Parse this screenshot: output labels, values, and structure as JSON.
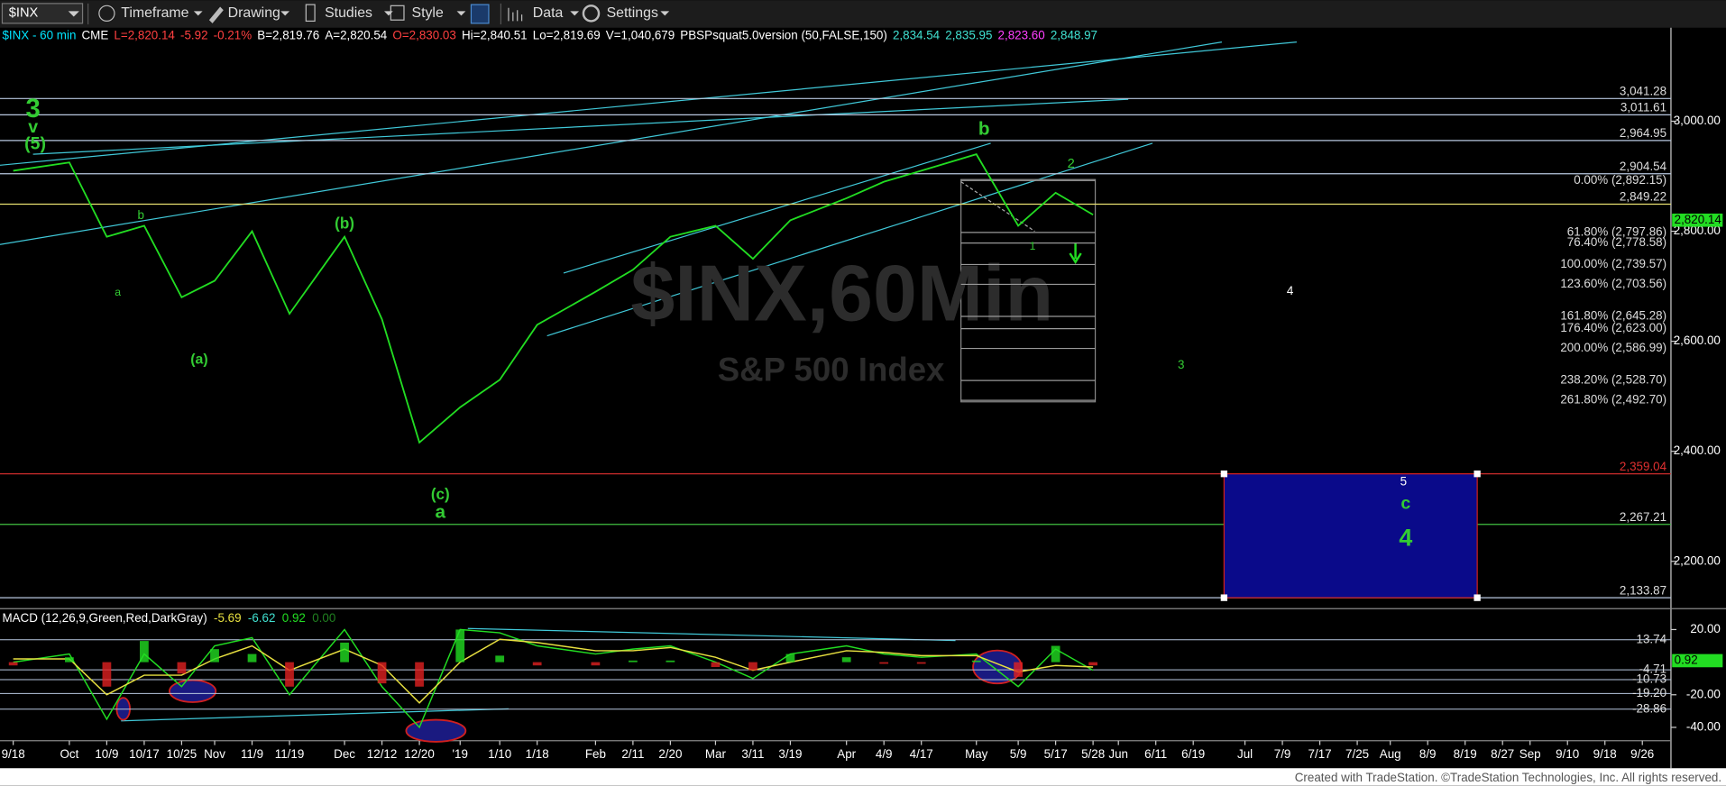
{
  "toolbar": {
    "symbol": "$INX",
    "items": [
      "Timeframe",
      "Drawing",
      "Studies",
      "Style",
      "Data",
      "Settings"
    ]
  },
  "header": {
    "fields": [
      {
        "text": "$INX - 60 min",
        "color": "#00e5ff"
      },
      {
        "text": "CME",
        "color": "#ffffff"
      },
      {
        "text": "L=2,820.14",
        "color": "#ff4040"
      },
      {
        "text": "-5.92",
        "color": "#ff4040"
      },
      {
        "text": "-0.21%",
        "color": "#ff4040"
      },
      {
        "text": "B=2,819.76",
        "color": "#ffffff"
      },
      {
        "text": "A=2,820.54",
        "color": "#ffffff"
      },
      {
        "text": "O=2,830.03",
        "color": "#ff4040"
      },
      {
        "text": "Hi=2,840.51",
        "color": "#ffffff"
      },
      {
        "text": "Lo=2,819.69",
        "color": "#ffffff"
      },
      {
        "text": "V=1,040,679",
        "color": "#ffffff"
      },
      {
        "text": "PBSPsquat5.0version (50,FALSE,150)",
        "color": "#ffffff"
      },
      {
        "text": "2,834.54",
        "color": "#40e0d0"
      },
      {
        "text": "2,835.95",
        "color": "#40e0d0"
      },
      {
        "text": "2,823.60",
        "color": "#ff40ff"
      },
      {
        "text": "2,848.97",
        "color": "#40e0d0"
      }
    ]
  },
  "watermark": {
    "line1": "$INX,60Min",
    "line2": "S&P 500 Index"
  },
  "chart_data": [
    {
      "type": "line",
      "color": "#22dd22",
      "categories": [
        "9/18",
        "Oct",
        "10/9",
        "10/17",
        "10/25",
        "Nov",
        "11/9",
        "11/19",
        "Dec",
        "12/12",
        "12/20",
        "'19",
        "1/10",
        "1/18",
        "Feb",
        "2/11",
        "2/20",
        "Mar",
        "3/11",
        "3/19",
        "Apr",
        "4/9",
        "4/17",
        "May",
        "5/9",
        "5/17",
        "5/28",
        "Jun",
        "6/11",
        "6/19",
        "Jul",
        "7/9",
        "7/17",
        "7/25",
        "Aug",
        "8/9",
        "8/19",
        "8/27",
        "Sep",
        "9/10",
        "9/18",
        "9/26"
      ],
      "values": [
        2910,
        2925,
        2790,
        2810,
        2680,
        2710,
        2800,
        2650,
        2790,
        2640,
        2416,
        2480,
        2530,
        2630,
        2690,
        2730,
        2790,
        2810,
        2750,
        2820,
        2860,
        2890,
        2910,
        2940,
        2810,
        2870,
        2830,
        null,
        null,
        null,
        null,
        null,
        null,
        null,
        null,
        null,
        null,
        null,
        null,
        null,
        null,
        null
      ],
      "ylim": [
        2114,
        3170
      ],
      "yticks": [
        {
          "value": 3000,
          "label": "3,000.00"
        },
        {
          "value": 2800,
          "label": "2,800.00"
        },
        {
          "value": 2600,
          "label": "2,600.00"
        },
        {
          "value": 2400,
          "label": "2,400.00"
        },
        {
          "value": 2200,
          "label": "2,200.00"
        }
      ],
      "last_price": {
        "value": 2820.14,
        "label": "2,820.14",
        "color": "#22dd22"
      },
      "levels": [
        {
          "value": 3041.28,
          "label": "3,041.28",
          "color": "#b8c8e0"
        },
        {
          "value": 3011.61,
          "label": "3,011.61",
          "color": "#b8c8e0"
        },
        {
          "value": 2964.95,
          "label": "2,964.95",
          "color": "#b8c8e0"
        },
        {
          "value": 2904.54,
          "label": "2,904.54",
          "color": "#b8c8e0"
        },
        {
          "value": 2849.22,
          "label": "2,849.22",
          "color": "#e8e070"
        },
        {
          "value": 2359.04,
          "label": "2,359.04",
          "color": "#e03030"
        },
        {
          "value": 2267.21,
          "label": "2,267.21",
          "color": "#40c040"
        },
        {
          "value": 2133.87,
          "label": "2,133.87",
          "color": "#b8c8e0"
        }
      ],
      "fib_levels": [
        {
          "value": 2892.15,
          "label": "0.00% (2,892.15)"
        },
        {
          "value": 2797.86,
          "label": "61.80% (2,797.86)"
        },
        {
          "value": 2778.58,
          "label": "76.40% (2,778.58)"
        },
        {
          "value": 2739.57,
          "label": "100.00% (2,739.57)"
        },
        {
          "value": 2703.56,
          "label": "123.60% (2,703.56)"
        },
        {
          "value": 2645.28,
          "label": "161.80% (2,645.28)"
        },
        {
          "value": 2623.0,
          "label": "176.40% (2,623.00)"
        },
        {
          "value": 2586.99,
          "label": "200.00% (2,586.99)"
        },
        {
          "value": 2528.7,
          "label": "238.20% (2,528.70)"
        },
        {
          "value": 2492.7,
          "label": "261.80% (2,492.70)"
        }
      ],
      "annotations": [
        {
          "text": "3",
          "color": "#33cc33"
        },
        {
          "text": "v",
          "color": "#33cc33"
        },
        {
          "text": "(5)",
          "color": "#33cc33"
        },
        {
          "text": "b",
          "color": "#33cc33"
        },
        {
          "text": "a",
          "color": "#33cc33"
        },
        {
          "text": "(a)",
          "color": "#33cc33"
        },
        {
          "text": "(b)",
          "color": "#33cc33"
        },
        {
          "text": "(c)",
          "color": "#33cc33"
        },
        {
          "text": "a",
          "color": "#33cc33"
        },
        {
          "text": "b",
          "color": "#33cc33"
        },
        {
          "text": "2",
          "color": "#33cc33"
        },
        {
          "text": "1",
          "color": "#33cc33"
        },
        {
          "text": "4",
          "color": "#ffffff"
        },
        {
          "text": "3",
          "color": "#33cc33"
        },
        {
          "text": "5",
          "color": "#ffffff"
        },
        {
          "text": "c",
          "color": "#33cc33"
        },
        {
          "text": "4",
          "color": "#33cc33"
        }
      ]
    },
    {
      "type": "line",
      "title": "MACD (12,26,9,Green,Red,DarkGray)",
      "readouts": [
        {
          "text": "-5.69",
          "color": "#e8e040"
        },
        {
          "text": "-6.62",
          "color": "#40e0d0"
        },
        {
          "text": "0.92",
          "color": "#22dd22"
        },
        {
          "text": "0.00",
          "color": "#208020"
        }
      ],
      "series": [
        {
          "color": "#22dd22",
          "values": [
            0,
            5,
            -35,
            5,
            -15,
            10,
            15,
            -20,
            20,
            -15,
            -40,
            20,
            18,
            10,
            5,
            8,
            10,
            0,
            -10,
            5,
            10,
            5,
            3,
            5,
            -15,
            8,
            -5,
            null,
            null,
            null,
            null,
            null,
            null,
            null,
            null,
            null,
            null,
            null,
            null,
            null,
            null,
            null
          ]
        },
        {
          "color": "#e8e040",
          "values": [
            2,
            2,
            -20,
            -8,
            -8,
            2,
            10,
            -5,
            8,
            -2,
            -25,
            0,
            14,
            12,
            7,
            7,
            9,
            3,
            -5,
            0,
            7,
            6,
            4,
            4,
            -6,
            -2,
            -3,
            null,
            null,
            null,
            null,
            null,
            null,
            null,
            null,
            null,
            null,
            null,
            null,
            null,
            null,
            null
          ]
        }
      ],
      "ylim": [
        -47.5,
        30.8
      ],
      "yticks": [
        {
          "value": 20,
          "label": "20.00"
        },
        {
          "value": -20,
          "label": "-20.00"
        },
        {
          "value": -40,
          "label": "-40.00"
        }
      ],
      "last_value": {
        "value": 0.92,
        "label": "0.92",
        "color": "#22dd22"
      },
      "levels": [
        {
          "value": 13.74,
          "label": "13.74"
        },
        {
          "value": -4.71,
          "label": "-4.71"
        },
        {
          "value": -10.73,
          "label": "-10.73"
        },
        {
          "value": -19.2,
          "label": "-19.20"
        },
        {
          "value": -28.86,
          "label": "-28.86"
        }
      ]
    }
  ],
  "footer": "Created with TradeStation. ©TradeStation Technologies, Inc. All rights reserved."
}
